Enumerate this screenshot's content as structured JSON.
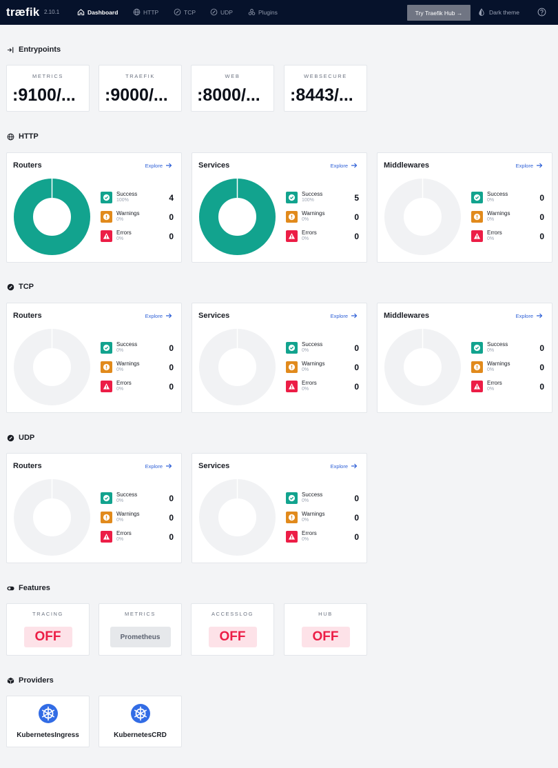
{
  "header": {
    "logo": "træfik",
    "version": "2.10.1",
    "nav": [
      {
        "label": "Dashboard"
      },
      {
        "label": "HTTP"
      },
      {
        "label": "TCP"
      },
      {
        "label": "UDP"
      },
      {
        "label": "Plugins"
      }
    ],
    "hub_button": "Try Traefik Hub →",
    "theme_label": "Dark theme"
  },
  "sections": {
    "entrypoints": "Entrypoints",
    "http": "HTTP",
    "tcp": "TCP",
    "udp": "UDP",
    "features": "Features",
    "providers": "Providers"
  },
  "entrypoints": [
    {
      "label": "METRICS",
      "value": ":9100/..."
    },
    {
      "label": "TRAEFIK",
      "value": ":9000/..."
    },
    {
      "label": "WEB",
      "value": ":8000/..."
    },
    {
      "label": "WEBSECURE",
      "value": ":8443/..."
    }
  ],
  "legend_labels": {
    "success": "Success",
    "warnings": "Warnings",
    "errors": "Errors"
  },
  "explore_label": "Explore",
  "http": [
    {
      "title": "Routers",
      "success": 4,
      "warnings": 0,
      "errors": 0,
      "success_pct": "100%",
      "warnings_pct": "0%",
      "errors_pct": "0%"
    },
    {
      "title": "Services",
      "success": 5,
      "warnings": 0,
      "errors": 0,
      "success_pct": "100%",
      "warnings_pct": "0%",
      "errors_pct": "0%"
    },
    {
      "title": "Middlewares",
      "success": 0,
      "warnings": 0,
      "errors": 0,
      "success_pct": "0%",
      "warnings_pct": "0%",
      "errors_pct": "0%"
    }
  ],
  "tcp": [
    {
      "title": "Routers",
      "success": 0,
      "warnings": 0,
      "errors": 0,
      "success_pct": "0%",
      "warnings_pct": "0%",
      "errors_pct": "0%"
    },
    {
      "title": "Services",
      "success": 0,
      "warnings": 0,
      "errors": 0,
      "success_pct": "0%",
      "warnings_pct": "0%",
      "errors_pct": "0%"
    },
    {
      "title": "Middlewares",
      "success": 0,
      "warnings": 0,
      "errors": 0,
      "success_pct": "0%",
      "warnings_pct": "0%",
      "errors_pct": "0%"
    }
  ],
  "udp": [
    {
      "title": "Routers",
      "success": 0,
      "warnings": 0,
      "errors": 0,
      "success_pct": "0%",
      "warnings_pct": "0%",
      "errors_pct": "0%"
    },
    {
      "title": "Services",
      "success": 0,
      "warnings": 0,
      "errors": 0,
      "success_pct": "0%",
      "warnings_pct": "0%",
      "errors_pct": "0%"
    }
  ],
  "features": [
    {
      "label": "TRACING",
      "value": "OFF",
      "state": "off"
    },
    {
      "label": "METRICS",
      "value": "Prometheus",
      "state": "on"
    },
    {
      "label": "ACCESSLOG",
      "value": "OFF",
      "state": "off"
    },
    {
      "label": "HUB",
      "value": "OFF",
      "state": "off"
    }
  ],
  "providers": [
    {
      "name": "KubernetesIngress",
      "icon": "kubernetes-icon"
    },
    {
      "name": "KubernetesCRD",
      "icon": "kubernetes-icon"
    }
  ],
  "colors": {
    "success": "#12a38e",
    "warning": "#e18a1c",
    "error": "#ec1d46",
    "empty": "#f1f2f4",
    "header_bg": "#06122b",
    "link": "#2d5fd6"
  }
}
